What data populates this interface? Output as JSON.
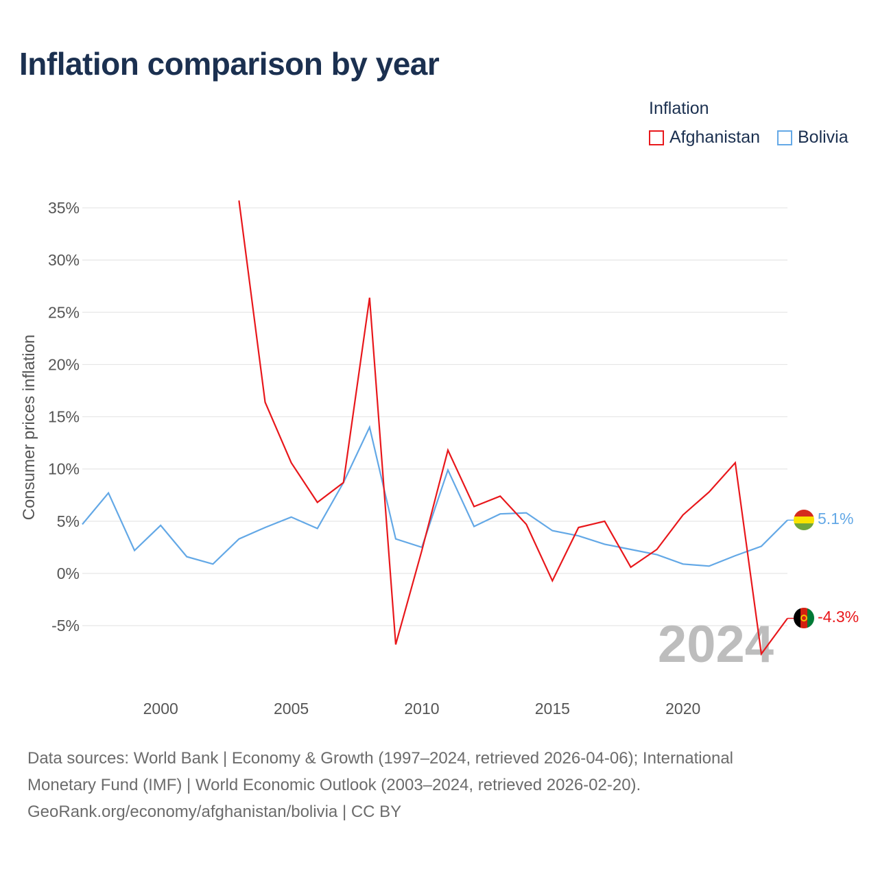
{
  "title": "Inflation comparison by year",
  "legend": {
    "title": "Inflation",
    "items": [
      {
        "label": "Afghanistan",
        "color": "#e8171b"
      },
      {
        "label": "Bolivia",
        "color": "#63a8e6"
      }
    ]
  },
  "source": {
    "line1": "Data sources: World Bank | Economy & Growth (1997–2024, retrieved 2026-04-06); International",
    "line2": "Monetary Fund (IMF) | World Economic Outlook (2003–2024, retrieved 2026-02-20).",
    "line3": "GeoRank.org/economy/afghanistan/bolivia | CC BY"
  },
  "chart_data": {
    "type": "line",
    "title": "Inflation comparison by year",
    "ylabel": "Consumer prices inflation",
    "xlabel": "",
    "xlim": [
      1997,
      2024
    ],
    "ylim": [
      -10,
      37
    ],
    "x_ticks": [
      2000,
      2005,
      2010,
      2015,
      2020
    ],
    "y_ticks": [
      -5,
      0,
      5,
      10,
      15,
      20,
      25,
      30,
      35
    ],
    "y_tick_labels": [
      "-5%",
      "0%",
      "5%",
      "10%",
      "15%",
      "20%",
      "25%",
      "30%",
      "35%"
    ],
    "year_marker": "2024",
    "series": [
      {
        "name": "Afghanistan",
        "color": "#e8171b",
        "end_label": "-4.3%",
        "flag": "afghanistan-flag",
        "points": [
          [
            2003,
            35.7
          ],
          [
            2004,
            16.4
          ],
          [
            2005,
            10.6
          ],
          [
            2006,
            6.8
          ],
          [
            2007,
            8.7
          ],
          [
            2008,
            26.4
          ],
          [
            2009,
            -6.8
          ],
          [
            2010,
            2.2
          ],
          [
            2011,
            11.8
          ],
          [
            2012,
            6.4
          ],
          [
            2013,
            7.4
          ],
          [
            2014,
            4.7
          ],
          [
            2015,
            -0.7
          ],
          [
            2016,
            4.4
          ],
          [
            2017,
            5.0
          ],
          [
            2018,
            0.6
          ],
          [
            2019,
            2.3
          ],
          [
            2020,
            5.6
          ],
          [
            2021,
            7.8
          ],
          [
            2022,
            10.6
          ],
          [
            2023,
            -7.7
          ],
          [
            2024,
            -4.3
          ]
        ]
      },
      {
        "name": "Bolivia",
        "color": "#63a8e6",
        "end_label": "5.1%",
        "flag": "bolivia-flag",
        "points": [
          [
            1997,
            4.7
          ],
          [
            1998,
            7.7
          ],
          [
            1999,
            2.2
          ],
          [
            2000,
            4.6
          ],
          [
            2001,
            1.6
          ],
          [
            2002,
            0.9
          ],
          [
            2003,
            3.3
          ],
          [
            2004,
            4.4
          ],
          [
            2005,
            5.4
          ],
          [
            2006,
            4.3
          ],
          [
            2007,
            8.7
          ],
          [
            2008,
            14.0
          ],
          [
            2009,
            3.3
          ],
          [
            2010,
            2.5
          ],
          [
            2011,
            9.9
          ],
          [
            2012,
            4.5
          ],
          [
            2013,
            5.7
          ],
          [
            2014,
            5.8
          ],
          [
            2015,
            4.1
          ],
          [
            2016,
            3.6
          ],
          [
            2017,
            2.8
          ],
          [
            2018,
            2.3
          ],
          [
            2019,
            1.8
          ],
          [
            2020,
            0.9
          ],
          [
            2021,
            0.7
          ],
          [
            2022,
            1.7
          ],
          [
            2023,
            2.6
          ],
          [
            2024,
            5.1
          ]
        ]
      }
    ]
  }
}
